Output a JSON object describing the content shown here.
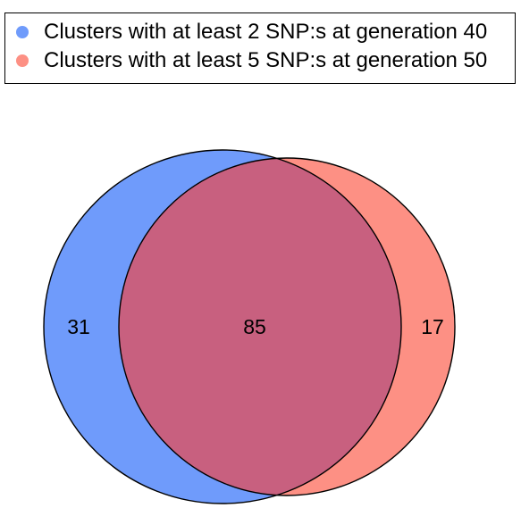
{
  "legend": {
    "items": [
      {
        "label": "Clusters with at least 2 SNP:s at generation 40",
        "color": "#6f9bfb"
      },
      {
        "label": "Clusters with at least 5 SNP:s at generation 50",
        "color": "#fd9084"
      }
    ]
  },
  "venn": {
    "set_a": {
      "name": "Clusters with at least 2 SNP:s at generation 40",
      "only_count": "31",
      "color": "#6f9bfb"
    },
    "set_b": {
      "name": "Clusters with at least 5 SNP:s at generation 50",
      "only_count": "17",
      "color": "#fd9084"
    },
    "intersection": {
      "count": "85",
      "color": "#c8607f"
    },
    "outline_color": "#000000"
  }
}
